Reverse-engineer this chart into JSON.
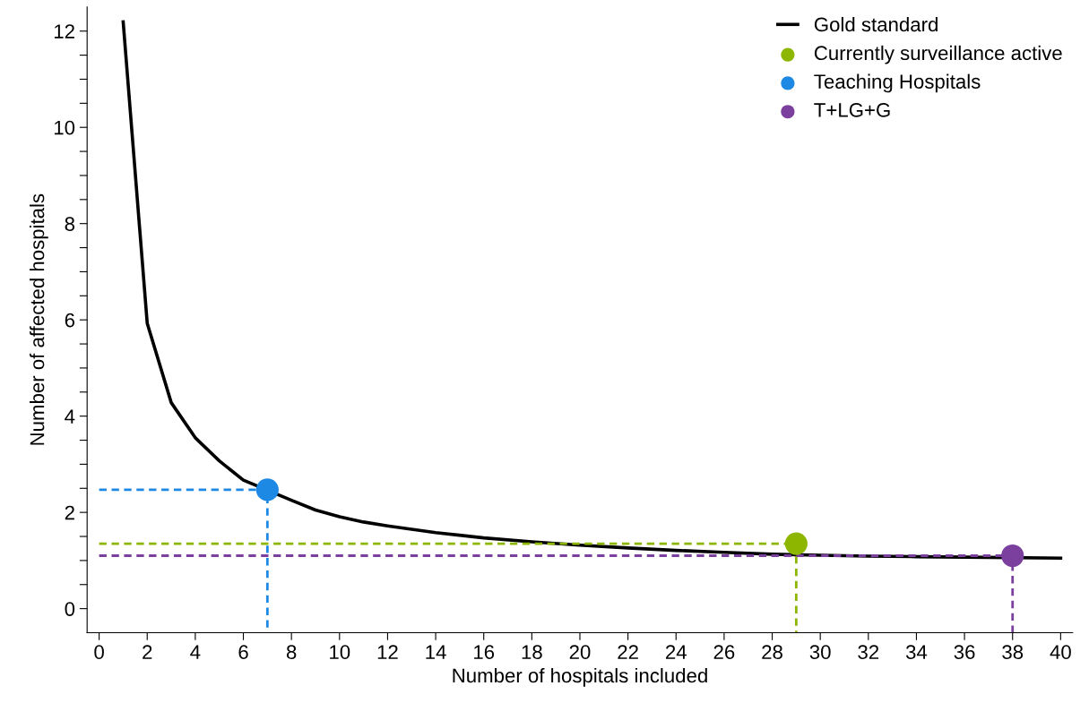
{
  "chart_data": {
    "type": "line",
    "xlabel": "Number of hospitals included",
    "ylabel": "Number of affected hospitals",
    "xlim": [
      -0.5,
      40.5
    ],
    "ylim": [
      -0.5,
      12.5
    ],
    "xticks": [
      0,
      2,
      4,
      6,
      8,
      10,
      12,
      14,
      16,
      18,
      20,
      22,
      24,
      26,
      28,
      30,
      32,
      34,
      36,
      38,
      40
    ],
    "yticks": [
      0,
      {
        "value": 0.5,
        "label": null
      },
      {
        "value": 1,
        "label": null
      },
      {
        "value": 1.5,
        "label": null
      },
      2,
      {
        "value": 2.5,
        "label": null
      },
      {
        "value": 3,
        "label": null
      },
      {
        "value": 3.5,
        "label": null
      },
      4,
      {
        "value": 4.5,
        "label": null
      },
      {
        "value": 5,
        "label": null
      },
      {
        "value": 5.5,
        "label": null
      },
      6,
      {
        "value": 6.5,
        "label": null
      },
      {
        "value": 7,
        "label": null
      },
      {
        "value": 7.5,
        "label": null
      },
      8,
      {
        "value": 8.5,
        "label": null
      },
      {
        "value": 9,
        "label": null
      },
      {
        "value": 9.5,
        "label": null
      },
      10,
      {
        "value": 10.5,
        "label": null
      },
      {
        "value": 11,
        "label": null
      },
      {
        "value": 11.5,
        "label": null
      },
      12
    ],
    "grid": false,
    "legend": "top right",
    "marker": "none",
    "series": [
      {
        "name": "Gold standard",
        "color": "#000000",
        "line_style": "solid",
        "x": [
          1,
          2,
          3,
          4,
          5,
          6,
          8,
          9,
          10,
          11,
          12,
          14,
          16,
          18,
          20,
          22,
          24,
          26,
          28,
          30,
          32,
          34,
          36,
          40
        ],
        "values": [
          12.19,
          5.93,
          4.28,
          3.55,
          3.07,
          2.67,
          2.25,
          2.05,
          1.91,
          1.8,
          1.72,
          1.58,
          1.47,
          1.39,
          1.32,
          1.26,
          1.21,
          1.17,
          1.13,
          1.11,
          1.09,
          1.08,
          1.07,
          1.05
        ]
      },
      {
        "color": "#1e88e5",
        "line_style": "dashed",
        "x": [
          0,
          7,
          7
        ],
        "values": [
          2.47,
          2.47,
          -0.5
        ]
      },
      {
        "color": "#8db600",
        "line_style": "dashed",
        "x": [
          0,
          29,
          29
        ],
        "values": [
          1.35,
          1.35,
          -0.5
        ]
      },
      {
        "color": "#7b3f9e",
        "line_style": "dashed",
        "x": [
          0,
          38,
          38
        ],
        "values": [
          1.1,
          1.1,
          -0.5
        ]
      },
      {
        "name": "Currently surveillance active",
        "type": "scatter",
        "marker": "circle",
        "color": "#8db600",
        "x": [
          29
        ],
        "values": [
          1.35
        ]
      },
      {
        "name": "Teaching Hospitals",
        "type": "scatter",
        "marker": "circle",
        "color": "#1e88e5",
        "x": [
          7
        ],
        "values": [
          2.47
        ]
      },
      {
        "name": "T+LG+G",
        "type": "scatter",
        "marker": "circle",
        "color": "#7b3f9e",
        "x": [
          38
        ],
        "values": [
          1.1
        ]
      }
    ]
  }
}
